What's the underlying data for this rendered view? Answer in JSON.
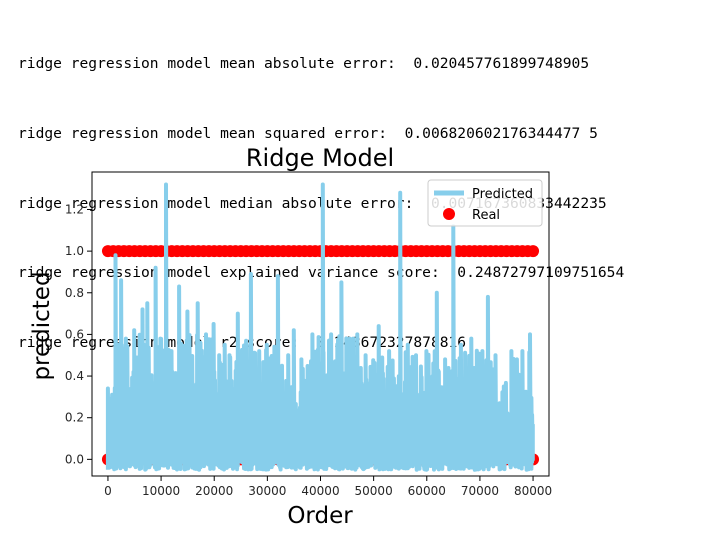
{
  "output": {
    "lines": [
      "ridge regression model mean absolute error:  0.020457761899748905",
      "ridge regression model mean squared error:  0.006820602176344477 5",
      "ridge regression model median absolute error:  0.007167360833442235",
      "ridge regression model explained variance score:  0.24872797109751654",
      "ridge regression model r2 score:  0.248672327878816"
    ]
  },
  "chart_data": {
    "type": "line",
    "title": "Ridge Model",
    "xlabel": "Order",
    "ylabel": "predicted",
    "xlim": [
      -3000,
      83000
    ],
    "ylim": [
      -0.08,
      1.38
    ],
    "xticks": [
      0,
      10000,
      20000,
      30000,
      40000,
      50000,
      60000,
      70000,
      80000
    ],
    "yticks": [
      0.0,
      0.2,
      0.4,
      0.6,
      0.8,
      1.0,
      1.2
    ],
    "legend": {
      "placement": "top-right"
    },
    "series": [
      {
        "name": "Predicted",
        "kind": "line",
        "color": "#87ceeb",
        "x_range": [
          0,
          80000
        ],
        "peaks": [
          {
            "x": 0,
            "y": 0.34
          },
          {
            "x": 1500,
            "y": 0.98
          },
          {
            "x": 2500,
            "y": 0.86
          },
          {
            "x": 3500,
            "y": 0.58
          },
          {
            "x": 5000,
            "y": 0.62
          },
          {
            "x": 6500,
            "y": 0.72
          },
          {
            "x": 7500,
            "y": 0.75
          },
          {
            "x": 9000,
            "y": 0.92
          },
          {
            "x": 10000,
            "y": 0.58
          },
          {
            "x": 11000,
            "y": 1.32
          },
          {
            "x": 12000,
            "y": 0.52
          },
          {
            "x": 13500,
            "y": 0.83
          },
          {
            "x": 15000,
            "y": 0.71
          },
          {
            "x": 17000,
            "y": 0.75
          },
          {
            "x": 18500,
            "y": 0.6
          },
          {
            "x": 20000,
            "y": 0.65
          },
          {
            "x": 21000,
            "y": 0.5
          },
          {
            "x": 22000,
            "y": 0.55
          },
          {
            "x": 23000,
            "y": 0.5
          },
          {
            "x": 24500,
            "y": 0.7
          },
          {
            "x": 26000,
            "y": 0.57
          },
          {
            "x": 27000,
            "y": 0.89
          },
          {
            "x": 28500,
            "y": 0.52
          },
          {
            "x": 30000,
            "y": 0.55
          },
          {
            "x": 32000,
            "y": 0.88
          },
          {
            "x": 34000,
            "y": 0.5
          },
          {
            "x": 35000,
            "y": 0.62
          },
          {
            "x": 36500,
            "y": 0.48
          },
          {
            "x": 38500,
            "y": 0.6
          },
          {
            "x": 40500,
            "y": 1.32
          },
          {
            "x": 42000,
            "y": 0.6
          },
          {
            "x": 44000,
            "y": 0.85
          },
          {
            "x": 45500,
            "y": 0.58
          },
          {
            "x": 47000,
            "y": 0.6
          },
          {
            "x": 48500,
            "y": 0.5
          },
          {
            "x": 51000,
            "y": 0.64
          },
          {
            "x": 53000,
            "y": 0.52
          },
          {
            "x": 55000,
            "y": 1.28
          },
          {
            "x": 56500,
            "y": 0.55
          },
          {
            "x": 58000,
            "y": 0.5
          },
          {
            "x": 60000,
            "y": 0.52
          },
          {
            "x": 62000,
            "y": 0.8
          },
          {
            "x": 63500,
            "y": 0.48
          },
          {
            "x": 65000,
            "y": 1.12
          },
          {
            "x": 66500,
            "y": 0.55
          },
          {
            "x": 68500,
            "y": 0.58
          },
          {
            "x": 70500,
            "y": 0.52
          },
          {
            "x": 71500,
            "y": 0.78
          },
          {
            "x": 73000,
            "y": 0.5
          },
          {
            "x": 74500,
            "y": 0.35
          },
          {
            "x": 76000,
            "y": 0.52
          },
          {
            "x": 77000,
            "y": 0.48
          },
          {
            "x": 78000,
            "y": 0.52
          },
          {
            "x": 79500,
            "y": 0.6
          }
        ],
        "baseline_range": [
          -0.05,
          0.0
        ]
      },
      {
        "name": "Real",
        "kind": "scatter",
        "color": "#ff0000",
        "levels": [
          0,
          1
        ],
        "x_range": [
          0,
          80000
        ]
      }
    ]
  }
}
